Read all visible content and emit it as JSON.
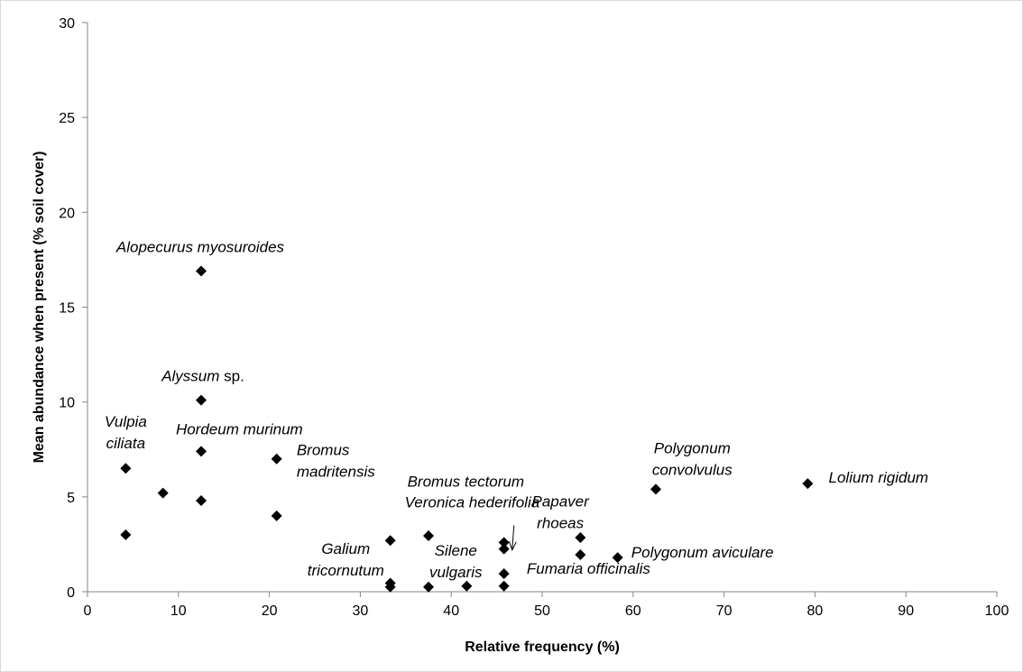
{
  "chart_data": {
    "type": "scatter",
    "title": "",
    "xlabel": "Relative frequency (%)",
    "ylabel": "Mean abundance when present (% soil cover)",
    "xlim": [
      0,
      100
    ],
    "ylim": [
      0,
      30
    ],
    "x_ticks": [
      0,
      10,
      20,
      30,
      40,
      50,
      60,
      70,
      80,
      90,
      100
    ],
    "y_ticks": [
      0,
      5,
      10,
      15,
      20,
      25,
      30
    ],
    "x_tick_labels": [
      "0",
      "10",
      "20",
      "30",
      "40",
      "50",
      "60",
      "70",
      "80",
      "90",
      "100"
    ],
    "y_tick_labels": [
      "0",
      "5",
      "10",
      "15",
      "20",
      "25",
      "30"
    ],
    "grid": false,
    "marker": "diamond",
    "marker_color": "#000000",
    "points": [
      {
        "x": 12.5,
        "y": 16.9
      },
      {
        "x": 12.5,
        "y": 10.1
      },
      {
        "x": 12.5,
        "y": 7.4
      },
      {
        "x": 4.2,
        "y": 6.5
      },
      {
        "x": 20.8,
        "y": 7.0
      },
      {
        "x": 8.3,
        "y": 5.2
      },
      {
        "x": 12.5,
        "y": 4.8
      },
      {
        "x": 20.8,
        "y": 4.0
      },
      {
        "x": 4.2,
        "y": 3.0
      },
      {
        "x": 62.5,
        "y": 5.4
      },
      {
        "x": 79.2,
        "y": 5.7
      },
      {
        "x": 54.2,
        "y": 2.85
      },
      {
        "x": 54.2,
        "y": 1.95
      },
      {
        "x": 58.3,
        "y": 1.8
      },
      {
        "x": 33.3,
        "y": 2.7
      },
      {
        "x": 37.5,
        "y": 2.95
      },
      {
        "x": 45.8,
        "y": 2.6
      },
      {
        "x": 45.8,
        "y": 2.25
      },
      {
        "x": 45.8,
        "y": 0.95
      },
      {
        "x": 33.3,
        "y": 0.45
      },
      {
        "x": 33.3,
        "y": 0.25
      },
      {
        "x": 37.5,
        "y": 0.25
      },
      {
        "x": 41.7,
        "y": 0.3
      },
      {
        "x": 45.8,
        "y": 0.3
      }
    ],
    "annotations": [
      {
        "lines": [
          [
            {
              "t": "Alopecurus myosuroides",
              "i": true
            }
          ]
        ],
        "x": 12.4,
        "y": 17.9,
        "anchor": "middle"
      },
      {
        "lines": [
          [
            {
              "t": "Alyssum",
              "i": true
            },
            {
              "t": " sp.",
              "i": false
            }
          ]
        ],
        "x": 12.7,
        "y": 11.1,
        "anchor": "middle"
      },
      {
        "lines": [
          [
            {
              "t": "Hordeum murinum",
              "i": true
            }
          ]
        ],
        "x": 16.7,
        "y": 8.3,
        "anchor": "middle"
      },
      {
        "lines": [
          [
            {
              "t": "Vulpia",
              "i": true
            }
          ],
          [
            {
              "t": "ciliata",
              "i": true
            }
          ]
        ],
        "x": 4.2,
        "y": 8.7,
        "anchor": "middle"
      },
      {
        "lines": [
          [
            {
              "t": "Bromus",
              "i": true
            }
          ],
          [
            {
              "t": "madritensis",
              "i": true
            }
          ]
        ],
        "x": 23.0,
        "y": 7.2,
        "anchor": "start"
      },
      {
        "lines": [
          [
            {
              "t": "Bromus tectorum",
              "i": true
            }
          ]
        ],
        "x": 41.6,
        "y": 5.55,
        "anchor": "middle"
      },
      {
        "lines": [
          [
            {
              "t": "Veronica hederifolia",
              "i": true
            }
          ]
        ],
        "x": 42.3,
        "y": 4.45,
        "anchor": "middle"
      },
      {
        "lines": [
          [
            {
              "t": "Polygonum",
              "i": true
            }
          ],
          [
            {
              "t": "convolvulus",
              "i": true
            }
          ]
        ],
        "x": 66.5,
        "y": 7.3,
        "anchor": "middle"
      },
      {
        "lines": [
          [
            {
              "t": "Lolium rigidum",
              "i": true
            }
          ]
        ],
        "x": 81.5,
        "y": 5.75,
        "anchor": "start"
      },
      {
        "lines": [
          [
            {
              "t": "Papaver",
              "i": true
            }
          ],
          [
            {
              "t": "rhoeas",
              "i": true
            }
          ]
        ],
        "x": 52.0,
        "y": 4.5,
        "anchor": "middle"
      },
      {
        "lines": [
          [
            {
              "t": "Galium",
              "i": true
            }
          ],
          [
            {
              "t": "tricornutum",
              "i": true
            }
          ]
        ],
        "x": 28.4,
        "y": 2.0,
        "anchor": "middle"
      },
      {
        "lines": [
          [
            {
              "t": "Silene",
              "i": true
            }
          ],
          [
            {
              "t": "vulgaris",
              "i": true
            }
          ]
        ],
        "x": 40.5,
        "y": 1.9,
        "anchor": "middle"
      },
      {
        "lines": [
          [
            {
              "t": "Polygonum aviculare",
              "i": true
            }
          ]
        ],
        "x": 59.8,
        "y": 1.8,
        "anchor": "start"
      },
      {
        "lines": [
          [
            {
              "t": "Fumaria officinalis",
              "i": true
            }
          ]
        ],
        "x": 48.3,
        "y": 0.95,
        "anchor": "start"
      }
    ],
    "arrows": [
      {
        "from": [
          46.9,
          3.5
        ],
        "to": [
          46.7,
          2.2
        ]
      }
    ]
  }
}
